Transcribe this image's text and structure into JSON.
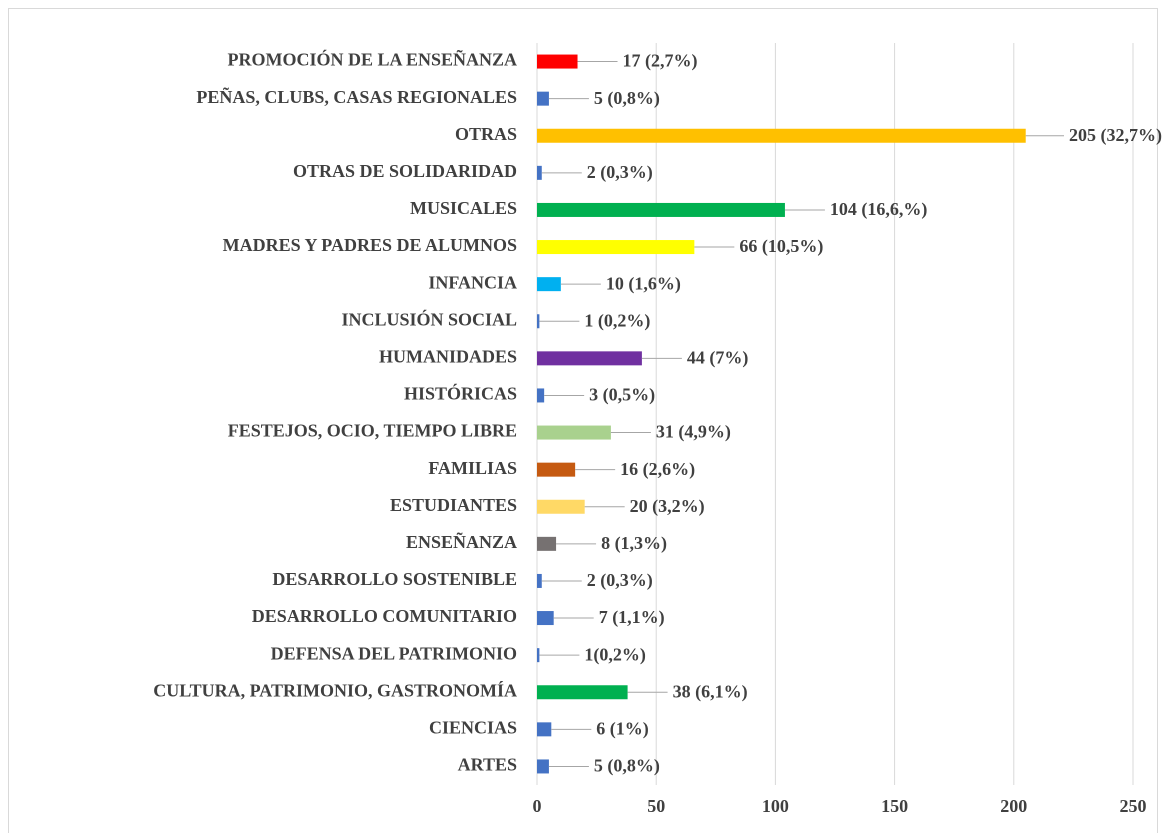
{
  "chart_data": {
    "type": "hbar",
    "categories": [
      "ARTES",
      "CIENCIAS",
      "CULTURA, PATRIMONIO, GASTRONOMÍA",
      "DEFENSA DEL PATRIMONIO",
      "DESARROLLO COMUNITARIO",
      "DESARROLLO SOSTENIBLE",
      "ENSEÑANZA",
      "ESTUDIANTES",
      "FAMILIAS",
      "FESTEJOS, OCIO, TIEMPO LIBRE",
      "HISTÓRICAS",
      "HUMANIDADES",
      "INCLUSIÓN SOCIAL",
      "INFANCIA",
      "MADRES Y PADRES DE ALUMNOS",
      "MUSICALES",
      "OTRAS DE SOLIDARIDAD",
      "OTRAS",
      "PEÑAS, CLUBS, CASAS REGIONALES",
      "PROMOCIÓN DE LA ENSEÑANZA"
    ],
    "values": [
      5,
      6,
      38,
      1,
      7,
      2,
      8,
      20,
      16,
      31,
      3,
      44,
      1,
      10,
      66,
      104,
      2,
      205,
      5,
      17
    ],
    "value_labels": [
      "5 (0,8%)",
      "6 (1%)",
      "38 (6,1%)",
      "1(0,2%)",
      "7 (1,1%)",
      "2 (0,3%)",
      "8 (1,3%)",
      "20 (3,2%)",
      "16 (2,6%)",
      "31 (4,9%)",
      "3 (0,5%)",
      "44 (7%)",
      "1 (0,2%)",
      "10 (1,6%)",
      "66 (10,5%)",
      "104 (16,6,%)",
      "2 (0,3%)",
      "205 (32,7%)",
      "5 (0,8%)",
      "17 (2,7%)"
    ],
    "colors": [
      "#4472c4",
      "#4472c4",
      "#00b050",
      "#4472c4",
      "#4472c4",
      "#4472c4",
      "#767171",
      "#ffd966",
      "#c55a11",
      "#a9d18e",
      "#4472c4",
      "#7030a0",
      "#4472c4",
      "#00b0f0",
      "#ffff00",
      "#00b050",
      "#4472c4",
      "#ffc000",
      "#4472c4",
      "#ff0000"
    ],
    "xlim": [
      0,
      250
    ],
    "xticks": [
      0,
      50,
      100,
      150,
      200,
      250
    ],
    "grid": true
  }
}
